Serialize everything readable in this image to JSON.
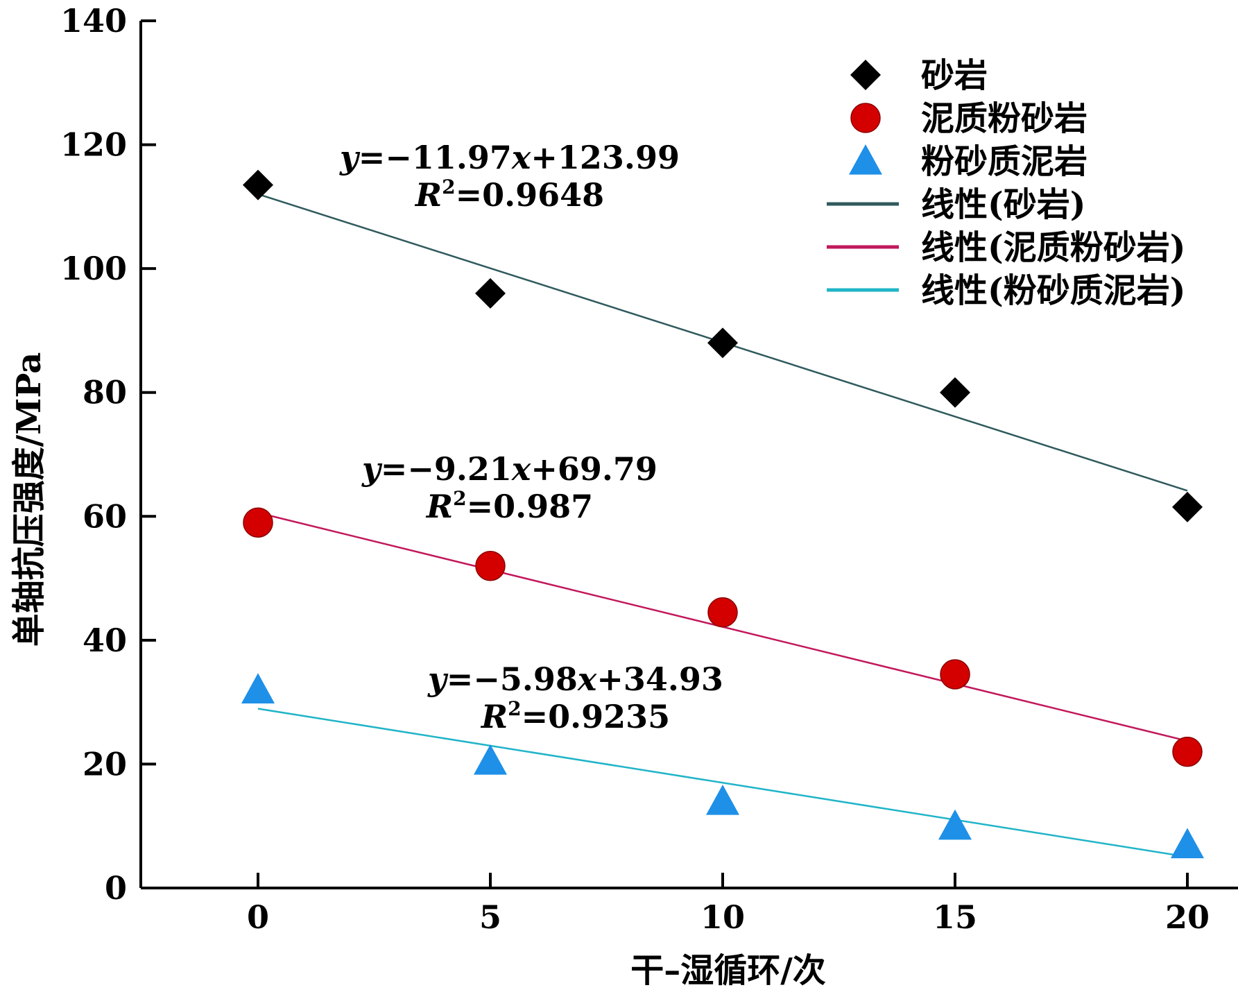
{
  "chart_data": {
    "type": "scatter",
    "xlabel": "干–湿循环/次",
    "ylabel": "单轴抗压强度/MPa",
    "xlim": [
      -2.5,
      21
    ],
    "ylim": [
      0,
      140
    ],
    "x_ticks": [
      0,
      5,
      10,
      15,
      20
    ],
    "y_ticks": [
      0,
      20,
      40,
      60,
      80,
      100,
      120,
      140
    ],
    "grid": false,
    "legend_position": "top-right",
    "series": [
      {
        "name": "砂岩",
        "marker": "diamond",
        "color": "#000000",
        "points": [
          [
            0,
            113.5
          ],
          [
            5,
            96
          ],
          [
            10,
            88
          ],
          [
            15,
            80
          ],
          [
            20,
            61.5
          ]
        ],
        "fit": {
          "name": "线性(砂岩)",
          "color": "#2f5a5e",
          "slope": -11.97,
          "intercept": 123.99,
          "x_range": [
            0,
            20
          ],
          "equation": "y=−11.97x+123.99",
          "r2_label": "R",
          "r2_value": "=0.9648"
        }
      },
      {
        "name": "泥质粉砂岩",
        "marker": "circle",
        "color": "#d40000",
        "points": [
          [
            0,
            59
          ],
          [
            5,
            52
          ],
          [
            10,
            44.5
          ],
          [
            15,
            34.5
          ],
          [
            20,
            22
          ]
        ],
        "fit": {
          "name": "线性(泥质粉砂岩)",
          "color": "#c2185b",
          "slope": -9.21,
          "intercept": 69.79,
          "x_range": [
            0,
            20
          ],
          "equation": "y=−9.21x+69.79",
          "r2_label": "R",
          "r2_value": "=0.987"
        }
      },
      {
        "name": "粉砂质泥岩",
        "marker": "triangle",
        "color": "#1e90e8",
        "points": [
          [
            0,
            32
          ],
          [
            5,
            20.5
          ],
          [
            10,
            14
          ],
          [
            15,
            10
          ],
          [
            20,
            7
          ]
        ],
        "fit": {
          "name": "线性(粉砂质泥岩)",
          "color": "#20b4c8",
          "slope": -5.98,
          "intercept": 34.93,
          "x_range": [
            0,
            20
          ],
          "equation": "y=−5.98x+34.93",
          "r2_label": "R",
          "r2_value": "=0.9235"
        }
      }
    ]
  }
}
